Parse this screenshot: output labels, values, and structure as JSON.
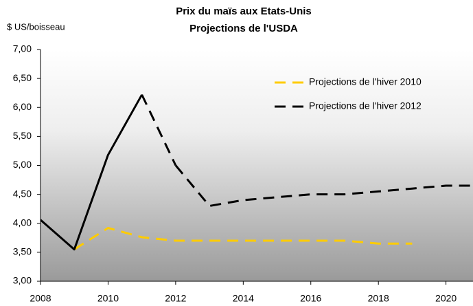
{
  "chart_data": {
    "type": "line",
    "title": "Prix du maïs aux Etats-Unis",
    "subtitle": "Projections de l'USDA",
    "ylabel": "$ US/boisseau",
    "x": [
      2008,
      2009,
      2010,
      2011,
      2012,
      2013,
      2014,
      2015,
      2016,
      2017,
      2018,
      2019,
      2020,
      2021
    ],
    "series": [
      {
        "name": "Projections de l'hiver 2010",
        "color": "#ffcc00",
        "style": "dashed",
        "values": [
          null,
          3.55,
          3.92,
          3.76,
          3.7,
          3.7,
          3.7,
          3.7,
          3.7,
          3.7,
          3.65,
          3.65,
          null,
          null
        ]
      },
      {
        "name": "Projections de l'hiver 2012",
        "color": "#000000",
        "style": "dashed",
        "solid_through": 2011,
        "values": [
          4.06,
          3.55,
          5.18,
          6.22,
          5.0,
          4.3,
          4.4,
          4.45,
          4.5,
          4.5,
          4.55,
          4.6,
          4.65,
          4.65
        ]
      }
    ],
    "xlim": [
      2008,
      2020.8
    ],
    "xticks": [
      2008,
      2010,
      2012,
      2014,
      2016,
      2018,
      2020
    ],
    "ylim": [
      3,
      7
    ],
    "yticks": [
      {
        "value": 3,
        "label": "3,00"
      },
      {
        "value": 3.5,
        "label": "3,50"
      },
      {
        "value": 4,
        "label": "4,00"
      },
      {
        "value": 4.5,
        "label": "4,50"
      },
      {
        "value": 5,
        "label": "5,00"
      },
      {
        "value": 5.5,
        "label": "5,50"
      },
      {
        "value": 6,
        "label": "6,00"
      },
      {
        "value": 6.5,
        "label": "6,50"
      },
      {
        "value": 7,
        "label": "7,00"
      }
    ],
    "legend": "upper right"
  }
}
